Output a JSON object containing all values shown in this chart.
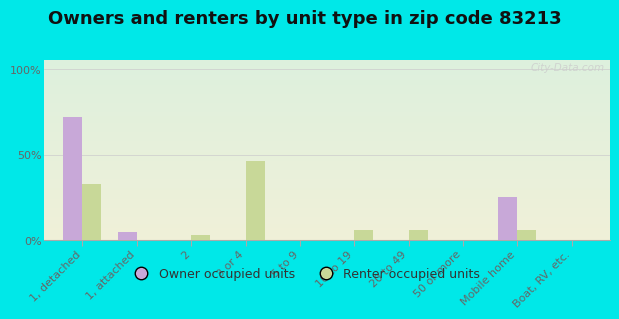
{
  "title": "Owners and renters by unit type in zip code 83213",
  "categories": [
    "1, detached",
    "1, attached",
    "2",
    "3 or 4",
    "5 to 9",
    "10 to 19",
    "20 to 49",
    "50 or more",
    "Mobile home",
    "Boat, RV, etc."
  ],
  "owner_values": [
    72,
    5,
    0,
    0,
    0,
    0,
    0,
    0,
    25,
    0
  ],
  "renter_values": [
    33,
    0,
    3,
    46,
    0,
    6,
    6,
    0,
    6,
    0
  ],
  "owner_color": "#c8a8d8",
  "renter_color": "#c8d898",
  "background_top": "#ddf0dd",
  "background_bottom": "#f0f0d8",
  "outer_bg": "#00e8e8",
  "yticks": [
    0,
    50,
    100
  ],
  "ylabels": [
    "0%",
    "50%",
    "100%"
  ],
  "ylim": [
    0,
    105
  ],
  "bar_width": 0.35,
  "title_fontsize": 13,
  "tick_fontsize": 8,
  "legend_fontsize": 9,
  "watermark": "City-Data.com"
}
